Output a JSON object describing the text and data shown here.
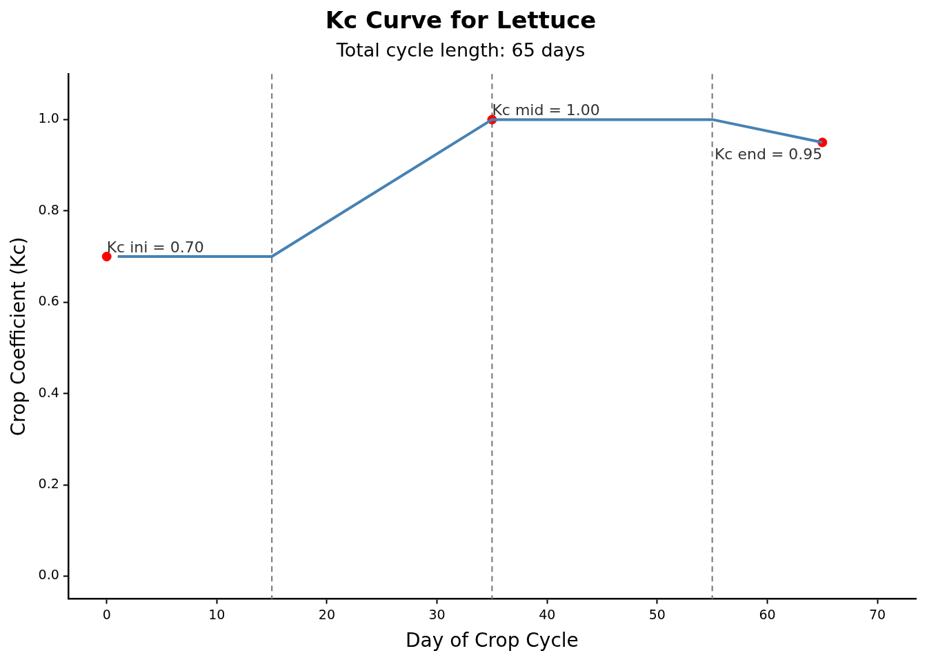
{
  "chart_data": {
    "type": "line",
    "title": "Kc Curve for Lettuce",
    "subtitle": "Total cycle length: 65 days",
    "xlabel": "Day of Crop Cycle",
    "ylabel": "Crop Coefficient (Kc)",
    "series": [
      {
        "color": "#4682b4",
        "x": [
          1,
          15,
          35,
          55,
          65
        ],
        "values": [
          0.7,
          0.7,
          1.0,
          1.0,
          0.95
        ],
        "marker": "none"
      },
      {
        "type": "scatter",
        "color": "#ff0000",
        "x": [
          0,
          35,
          65
        ],
        "values": [
          0.7,
          1.0,
          0.95
        ],
        "marker": "circle"
      }
    ],
    "xlim": [
      -3.5,
      73.5
    ],
    "xticks": [
      0,
      10,
      20,
      30,
      40,
      50,
      60,
      70
    ],
    "ylim": [
      -0.05,
      1.1
    ],
    "yticks": [
      {
        "value": 0,
        "label": "0.0"
      },
      {
        "value": 0.2,
        "label": "0.2"
      },
      {
        "value": 0.4,
        "label": "0.4"
      },
      {
        "value": 0.6,
        "label": "0.6"
      },
      {
        "value": 0.8,
        "label": "0.8"
      },
      {
        "value": 1,
        "label": "1.0"
      }
    ],
    "ref_lines": [
      {
        "axis": "x",
        "value": 15,
        "color": "#7f7f7f",
        "line_style": "dashed"
      },
      {
        "axis": "x",
        "value": 35,
        "color": "#7f7f7f",
        "line_style": "dashed"
      },
      {
        "axis": "x",
        "value": 55,
        "color": "#7f7f7f",
        "line_style": "dashed"
      }
    ],
    "annotations": [
      {
        "text": "Kc ini = 0.70",
        "x": 0,
        "y": 0.7
      },
      {
        "text": "Kc mid = 1.00",
        "x": 35,
        "y": 1.0
      },
      {
        "text": "Kc end = 0.95",
        "x": 65,
        "y": 0.95
      }
    ],
    "grid": false,
    "legend": false
  }
}
